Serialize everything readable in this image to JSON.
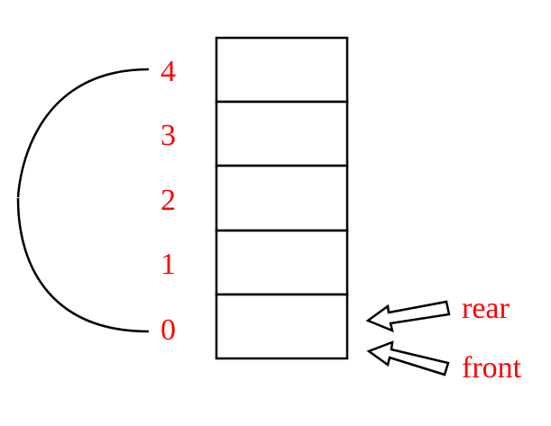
{
  "colors": {
    "label": "#ff0000",
    "stroke": "#000000",
    "background": "#ffffff"
  },
  "queue": {
    "slots": [
      {
        "index": "4"
      },
      {
        "index": "3"
      },
      {
        "index": "2"
      },
      {
        "index": "1"
      },
      {
        "index": "0"
      }
    ]
  },
  "pointers": {
    "rear": {
      "label": "rear",
      "slot_index": "0"
    },
    "front": {
      "label": "front",
      "slot_index": "0"
    }
  },
  "wraparound": {
    "from_index": "4",
    "to_index": "0"
  }
}
